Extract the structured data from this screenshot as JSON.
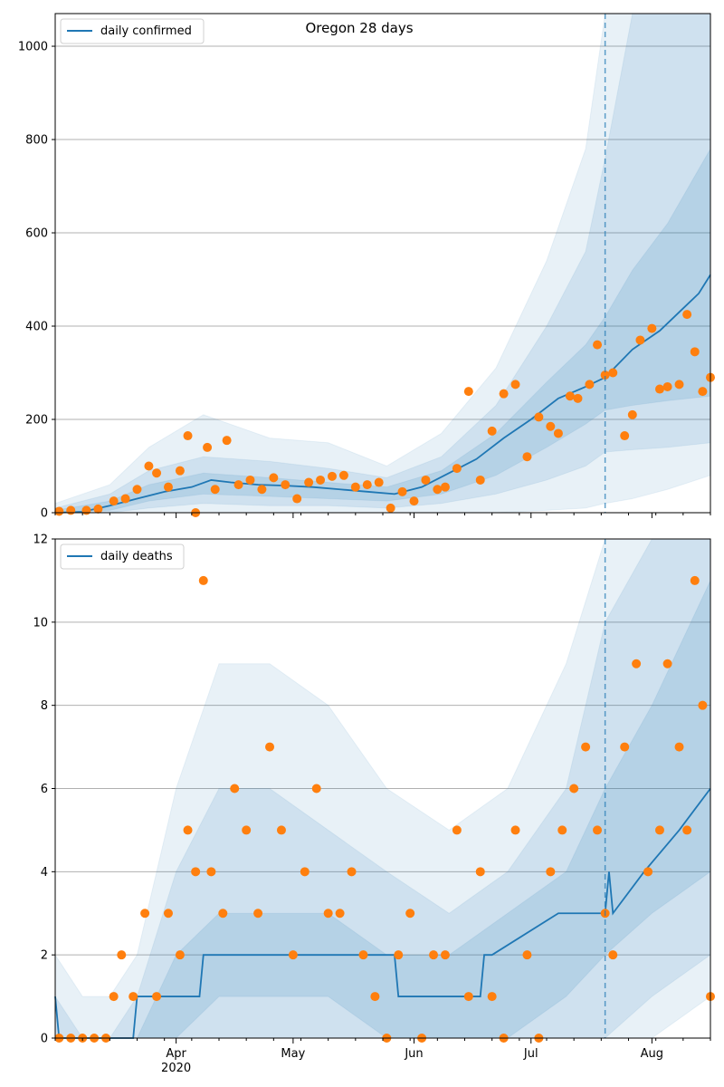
{
  "chart_data": [
    {
      "type": "line",
      "title": "Oregon 28 days",
      "xlabel": "",
      "ylabel": "",
      "xlim": [
        "2020-03-01",
        "2020-08-16"
      ],
      "ylim": [
        0,
        1070
      ],
      "yticks": [
        0,
        200,
        400,
        600,
        800,
        1000
      ],
      "grid": "y",
      "legend": "top-left",
      "vline": {
        "x": "2020-07-20",
        "style": "dashed",
        "color": "#1f77b4"
      },
      "bands": [
        {
          "name": "outer",
          "color": "#1f77b4",
          "opacity": 0.1,
          "x": [
            "2020-03-01",
            "2020-03-15",
            "2020-03-25",
            "2020-04-08",
            "2020-04-25",
            "2020-05-10",
            "2020-05-25",
            "2020-06-08",
            "2020-06-22",
            "2020-07-05",
            "2020-07-15",
            "2020-07-20",
            "2020-07-27",
            "2020-08-05",
            "2020-08-16"
          ],
          "upper": [
            20,
            60,
            140,
            210,
            160,
            150,
            100,
            170,
            310,
            540,
            780,
            1070,
            1070,
            1070,
            1070
          ],
          "lower": [
            0,
            0,
            0,
            0,
            0,
            0,
            0,
            0,
            0,
            5,
            10,
            20,
            30,
            50,
            80
          ]
        },
        {
          "name": "middle",
          "color": "#1f77b4",
          "opacity": 0.12,
          "x": [
            "2020-03-01",
            "2020-03-15",
            "2020-03-25",
            "2020-04-08",
            "2020-04-25",
            "2020-05-10",
            "2020-05-25",
            "2020-06-08",
            "2020-06-22",
            "2020-07-05",
            "2020-07-15",
            "2020-07-20",
            "2020-07-27",
            "2020-08-05",
            "2020-08-16"
          ],
          "upper": [
            10,
            40,
            90,
            120,
            110,
            95,
            75,
            120,
            230,
            400,
            560,
            760,
            1070,
            1070,
            1070
          ],
          "lower": [
            0,
            0,
            10,
            20,
            15,
            15,
            10,
            20,
            40,
            70,
            100,
            130,
            135,
            140,
            150
          ]
        },
        {
          "name": "inner",
          "color": "#1f77b4",
          "opacity": 0.14,
          "x": [
            "2020-03-01",
            "2020-03-15",
            "2020-03-25",
            "2020-04-08",
            "2020-04-25",
            "2020-05-10",
            "2020-05-25",
            "2020-06-08",
            "2020-06-22",
            "2020-07-05",
            "2020-07-15",
            "2020-07-20",
            "2020-07-27",
            "2020-08-05",
            "2020-08-16"
          ],
          "upper": [
            5,
            25,
            60,
            85,
            75,
            65,
            55,
            90,
            170,
            280,
            360,
            420,
            520,
            620,
            780
          ],
          "lower": [
            0,
            5,
            25,
            40,
            35,
            30,
            25,
            40,
            80,
            140,
            190,
            220,
            230,
            240,
            250
          ]
        }
      ],
      "series": [
        {
          "name": "daily confirmed",
          "type": "line",
          "color": "#1f77b4",
          "x": [
            "2020-03-01",
            "2020-03-08",
            "2020-03-15",
            "2020-03-22",
            "2020-03-29",
            "2020-04-05",
            "2020-04-10",
            "2020-04-15",
            "2020-04-22",
            "2020-04-29",
            "2020-05-06",
            "2020-05-13",
            "2020-05-20",
            "2020-05-27",
            "2020-06-03",
            "2020-06-10",
            "2020-06-17",
            "2020-06-24",
            "2020-07-01",
            "2020-07-08",
            "2020-07-15",
            "2020-07-20",
            "2020-07-27",
            "2020-08-03",
            "2020-08-08",
            "2020-08-13",
            "2020-08-16"
          ],
          "y": [
            0,
            2,
            15,
            30,
            45,
            55,
            70,
            65,
            60,
            58,
            55,
            50,
            45,
            40,
            55,
            85,
            115,
            160,
            200,
            245,
            270,
            290,
            350,
            390,
            430,
            470,
            510
          ]
        },
        {
          "name": "",
          "type": "scatter",
          "color": "#ff7f0e",
          "x": [
            "2020-03-02",
            "2020-03-05",
            "2020-03-09",
            "2020-03-12",
            "2020-03-16",
            "2020-03-19",
            "2020-03-22",
            "2020-03-25",
            "2020-03-27",
            "2020-03-30",
            "2020-04-02",
            "2020-04-04",
            "2020-04-06",
            "2020-04-09",
            "2020-04-11",
            "2020-04-14",
            "2020-04-17",
            "2020-04-20",
            "2020-04-23",
            "2020-04-26",
            "2020-04-29",
            "2020-05-02",
            "2020-05-05",
            "2020-05-08",
            "2020-05-11",
            "2020-05-14",
            "2020-05-17",
            "2020-05-20",
            "2020-05-23",
            "2020-05-26",
            "2020-05-29",
            "2020-06-01",
            "2020-06-04",
            "2020-06-07",
            "2020-06-09",
            "2020-06-12",
            "2020-06-15",
            "2020-06-18",
            "2020-06-21",
            "2020-06-24",
            "2020-06-27",
            "2020-06-30",
            "2020-07-03",
            "2020-07-06",
            "2020-07-08",
            "2020-07-11",
            "2020-07-13",
            "2020-07-16",
            "2020-07-18",
            "2020-07-20",
            "2020-07-22",
            "2020-07-25",
            "2020-07-27",
            "2020-07-29",
            "2020-08-01",
            "2020-08-03",
            "2020-08-05",
            "2020-08-08",
            "2020-08-10",
            "2020-08-12",
            "2020-08-14",
            "2020-08-16"
          ],
          "y": [
            3,
            5,
            5,
            8,
            25,
            30,
            50,
            100,
            85,
            55,
            90,
            165,
            0,
            140,
            50,
            155,
            60,
            70,
            50,
            75,
            60,
            30,
            65,
            70,
            78,
            80,
            55,
            60,
            65,
            10,
            45,
            25,
            70,
            50,
            55,
            95,
            260,
            70,
            175,
            255,
            275,
            120,
            205,
            185,
            170,
            250,
            245,
            275,
            360,
            295,
            300,
            165,
            210,
            370,
            395,
            265,
            270,
            275,
            425,
            345,
            260,
            290
          ]
        }
      ]
    },
    {
      "type": "line",
      "title": "",
      "xlabel": "",
      "ylabel": "",
      "xlim": [
        "2020-03-01",
        "2020-08-16"
      ],
      "ylim": [
        0,
        12
      ],
      "yticks": [
        0,
        2,
        4,
        6,
        8,
        10,
        12
      ],
      "xticks": [
        {
          "date": "2020-04-01",
          "label": "Apr",
          "sub": "2020"
        },
        {
          "date": "2020-05-01",
          "label": "May",
          "sub": ""
        },
        {
          "date": "2020-06-01",
          "label": "Jun",
          "sub": ""
        },
        {
          "date": "2020-07-01",
          "label": "Jul",
          "sub": ""
        },
        {
          "date": "2020-08-01",
          "label": "Aug",
          "sub": ""
        }
      ],
      "grid": "y",
      "legend": "top-left",
      "vline": {
        "x": "2020-07-20",
        "style": "dashed",
        "color": "#1f77b4"
      },
      "bands": [
        {
          "name": "outer",
          "color": "#1f77b4",
          "opacity": 0.1,
          "x": [
            "2020-03-01",
            "2020-03-08",
            "2020-03-15",
            "2020-03-22",
            "2020-04-01",
            "2020-04-12",
            "2020-04-25",
            "2020-05-10",
            "2020-05-25",
            "2020-06-10",
            "2020-06-25",
            "2020-07-10",
            "2020-07-20",
            "2020-08-01",
            "2020-08-16"
          ],
          "upper": [
            2,
            1,
            1,
            2,
            6,
            9,
            9,
            8,
            6,
            5,
            6,
            9,
            12,
            12,
            12
          ],
          "lower": [
            0,
            0,
            0,
            0,
            0,
            0,
            0,
            0,
            0,
            0,
            0,
            0,
            0,
            0,
            1
          ]
        },
        {
          "name": "middle",
          "color": "#1f77b4",
          "opacity": 0.12,
          "x": [
            "2020-03-01",
            "2020-03-08",
            "2020-03-15",
            "2020-03-22",
            "2020-04-01",
            "2020-04-12",
            "2020-04-25",
            "2020-05-10",
            "2020-05-25",
            "2020-06-10",
            "2020-06-25",
            "2020-07-10",
            "2020-07-20",
            "2020-08-01",
            "2020-08-16"
          ],
          "upper": [
            1,
            0,
            0,
            1,
            4,
            6,
            6,
            5,
            4,
            3,
            4,
            6,
            10,
            12,
            12
          ],
          "lower": [
            0,
            0,
            0,
            0,
            0,
            0,
            0,
            0,
            0,
            0,
            0,
            0,
            0,
            1,
            2
          ]
        },
        {
          "name": "inner",
          "color": "#1f77b4",
          "opacity": 0.14,
          "x": [
            "2020-03-01",
            "2020-03-08",
            "2020-03-15",
            "2020-03-22",
            "2020-04-01",
            "2020-04-12",
            "2020-04-25",
            "2020-05-10",
            "2020-05-25",
            "2020-06-10",
            "2020-06-25",
            "2020-07-10",
            "2020-07-20",
            "2020-08-01",
            "2020-08-16"
          ],
          "upper": [
            0,
            0,
            0,
            0,
            2,
            3,
            3,
            3,
            2,
            2,
            3,
            4,
            6,
            8,
            11
          ],
          "lower": [
            0,
            0,
            0,
            0,
            0,
            1,
            1,
            1,
            0,
            0,
            0,
            1,
            2,
            3,
            4
          ]
        }
      ],
      "series": [
        {
          "name": "daily deaths",
          "type": "step",
          "color": "#1f77b4",
          "x": [
            "2020-03-01",
            "2020-03-02",
            "2020-03-21",
            "2020-03-22",
            "2020-04-07",
            "2020-04-08",
            "2020-05-27",
            "2020-05-28",
            "2020-06-18",
            "2020-06-19",
            "2020-06-21",
            "2020-07-08",
            "2020-07-20",
            "2020-07-21",
            "2020-07-22",
            "2020-07-30",
            "2020-08-08",
            "2020-08-16"
          ],
          "y": [
            1,
            0,
            0,
            1,
            1,
            2,
            2,
            1,
            1,
            2,
            2,
            3,
            3,
            4,
            3,
            4,
            5,
            6
          ]
        },
        {
          "name": "",
          "type": "scatter",
          "color": "#ff7f0e",
          "x": [
            "2020-03-02",
            "2020-03-05",
            "2020-03-08",
            "2020-03-11",
            "2020-03-14",
            "2020-03-16",
            "2020-03-18",
            "2020-03-21",
            "2020-03-24",
            "2020-03-27",
            "2020-03-30",
            "2020-04-02",
            "2020-04-04",
            "2020-04-06",
            "2020-04-08",
            "2020-04-10",
            "2020-04-13",
            "2020-04-16",
            "2020-04-19",
            "2020-04-22",
            "2020-04-25",
            "2020-04-28",
            "2020-05-01",
            "2020-05-04",
            "2020-05-07",
            "2020-05-10",
            "2020-05-13",
            "2020-05-16",
            "2020-05-19",
            "2020-05-22",
            "2020-05-25",
            "2020-05-28",
            "2020-05-31",
            "2020-06-03",
            "2020-06-06",
            "2020-06-09",
            "2020-06-12",
            "2020-06-15",
            "2020-06-18",
            "2020-06-21",
            "2020-06-24",
            "2020-06-27",
            "2020-06-30",
            "2020-07-03",
            "2020-07-06",
            "2020-07-09",
            "2020-07-12",
            "2020-07-15",
            "2020-07-18",
            "2020-07-20",
            "2020-07-22",
            "2020-07-25",
            "2020-07-28",
            "2020-07-31",
            "2020-08-03",
            "2020-08-05",
            "2020-08-08",
            "2020-08-10",
            "2020-08-12",
            "2020-08-14",
            "2020-08-16"
          ],
          "y": [
            0,
            0,
            0,
            0,
            0,
            1,
            2,
            1,
            3,
            1,
            3,
            2,
            5,
            4,
            11,
            4,
            3,
            6,
            5,
            3,
            7,
            5,
            2,
            4,
            6,
            3,
            3,
            4,
            2,
            1,
            0,
            2,
            3,
            0,
            2,
            2,
            5,
            1,
            4,
            1,
            0,
            5,
            2,
            0,
            4,
            5,
            6,
            7,
            5,
            3,
            2,
            7,
            9,
            4,
            5,
            9,
            7,
            5,
            11,
            8,
            1
          ]
        }
      ]
    }
  ]
}
